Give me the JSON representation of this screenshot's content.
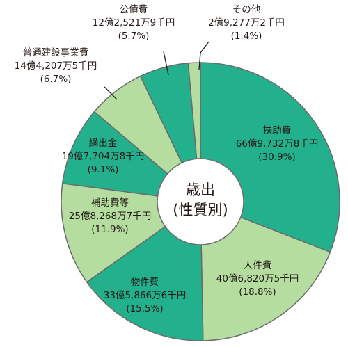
{
  "chart_data": {
    "type": "pie",
    "center_label": [
      "歳出",
      "(性質別)"
    ],
    "colors": {
      "dark": "#23b08c",
      "light": "#b5dda0",
      "stroke": "#6b6b6b",
      "text": "#231815",
      "hole": "#ffffff"
    },
    "slices": [
      {
        "name": "扶助費",
        "amount": "66億9,732万8千円",
        "pct_label": "(30.9%)",
        "value": 30.9,
        "tone": "dark"
      },
      {
        "name": "人件費",
        "amount": "40億6,820万5千円",
        "pct_label": "(18.8%)",
        "value": 18.8,
        "tone": "light"
      },
      {
        "name": "物件費",
        "amount": "33億5,866万6千円",
        "pct_label": "(15.5%)",
        "value": 15.5,
        "tone": "dark"
      },
      {
        "name": "補助費等",
        "amount": "25億8,268万7千円",
        "pct_label": "(11.9%)",
        "value": 11.9,
        "tone": "light"
      },
      {
        "name": "繰出金",
        "amount": "19億7,704万8千円",
        "pct_label": "(9.1%)",
        "value": 9.1,
        "tone": "dark"
      },
      {
        "name": "普通建設事業費",
        "amount": "14億4,207万5千円",
        "pct_label": "(6.7%)",
        "value": 6.7,
        "tone": "light"
      },
      {
        "name": "公債費",
        "amount": "12億2,521万9千円",
        "pct_label": "(5.7%)",
        "value": 5.7,
        "tone": "dark"
      },
      {
        "name": "その他",
        "amount": "2億9,277万2千円",
        "pct_label": "(1.4%)",
        "value": 1.4,
        "tone": "light"
      }
    ]
  }
}
